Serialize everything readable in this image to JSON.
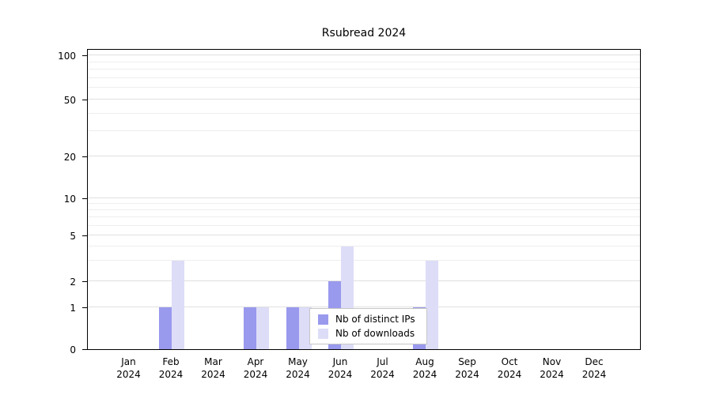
{
  "chart_data": {
    "type": "bar",
    "title": "Rsubread 2024",
    "categories": [
      "Jan 2024",
      "Feb 2024",
      "Mar 2024",
      "Apr 2024",
      "May 2024",
      "Jun 2024",
      "Jul 2024",
      "Aug 2024",
      "Sep 2024",
      "Oct 2024",
      "Nov 2024",
      "Dec 2024"
    ],
    "series": [
      {
        "name": "Nb of distinct IPs",
        "color": "#9999ee",
        "values": [
          0,
          1,
          0,
          1,
          1,
          2,
          0,
          1,
          0,
          0,
          0,
          0
        ]
      },
      {
        "name": "Nb of downloads",
        "color": "#ddddf8",
        "values": [
          0,
          3,
          0,
          1,
          1,
          4,
          0,
          3,
          0,
          0,
          0,
          0
        ]
      }
    ],
    "y_axis": {
      "ticks": [
        0,
        1,
        2,
        5,
        10,
        20,
        50,
        100
      ],
      "minor_gridlines": [
        3,
        4,
        6,
        7,
        8,
        9,
        30,
        40,
        60,
        70,
        80,
        90
      ],
      "scale": "logarithmic above 1, zero pinned at baseline",
      "range": [
        0,
        100
      ]
    },
    "legend": {
      "position": "inside-bottom-center"
    },
    "grid": "horizontal"
  }
}
